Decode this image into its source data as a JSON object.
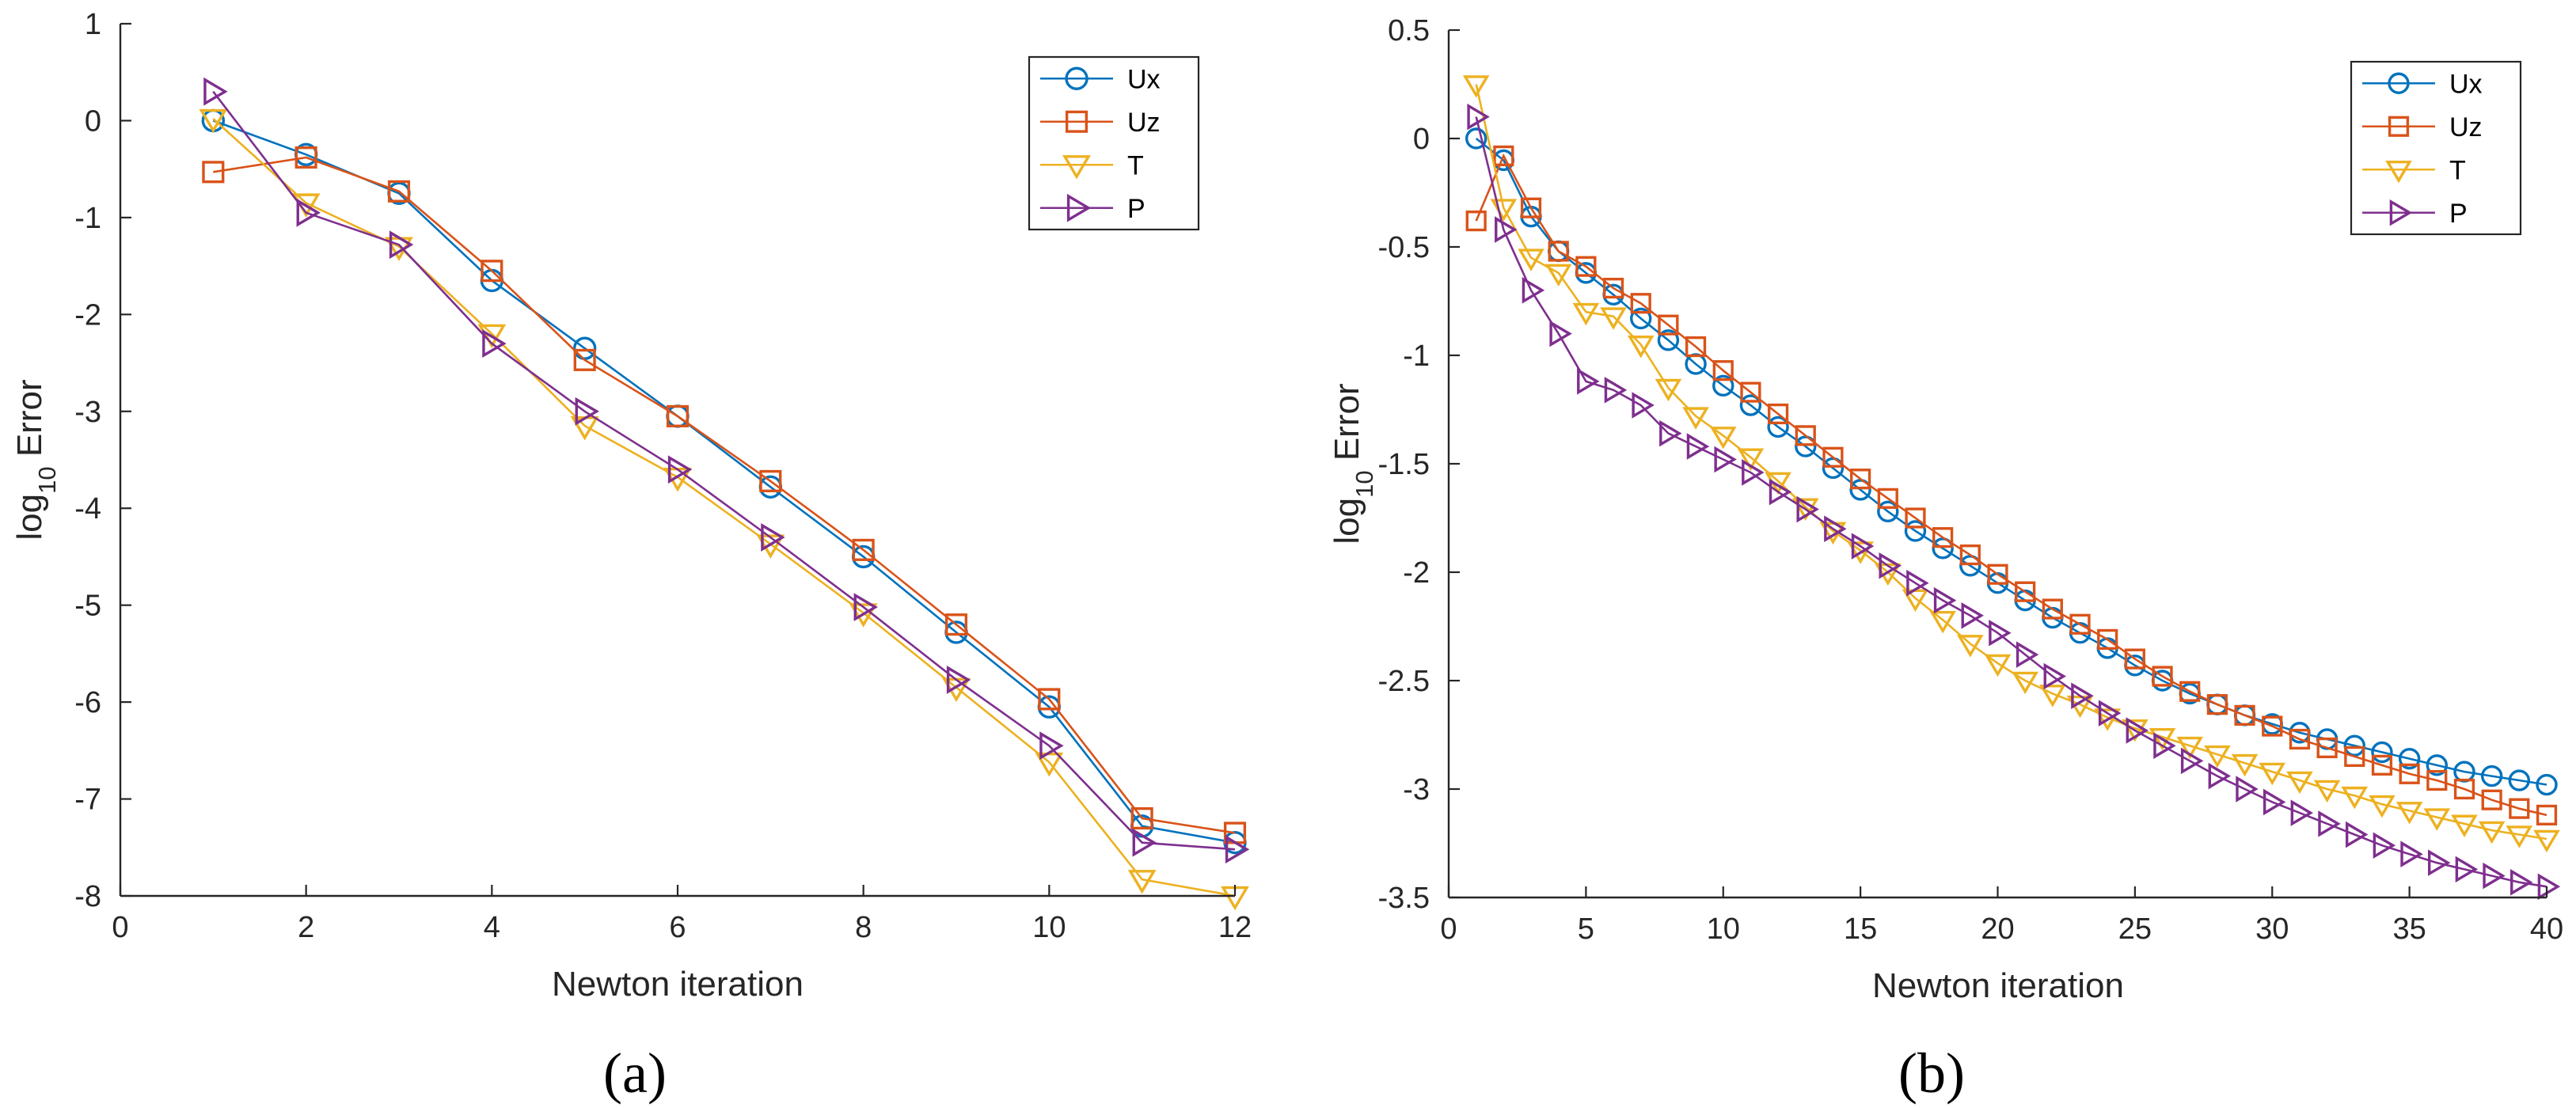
{
  "chart_data": [
    {
      "type": "line",
      "panel_label": "(a)",
      "xlabel": "Newton iteration",
      "ylabel": "log10 Error",
      "xlim": [
        0,
        12
      ],
      "ylim": [
        -8,
        1
      ],
      "xticks": [
        0,
        2,
        4,
        6,
        8,
        10,
        12
      ],
      "yticks": [
        1,
        0,
        -1,
        -2,
        -3,
        -4,
        -5,
        -6,
        -7,
        -8
      ],
      "grid": false,
      "legend_position": "top-right",
      "x": [
        1,
        2,
        3,
        4,
        5,
        6,
        7,
        8,
        9,
        10,
        11,
        12
      ],
      "series": [
        {
          "name": "Ux",
          "color": "#0072BD",
          "marker": "circle",
          "values": [
            0.0,
            -0.35,
            -0.75,
            -1.65,
            -2.35,
            -3.05,
            -3.78,
            -4.5,
            -5.28,
            -6.05,
            -7.28,
            -7.45
          ]
        },
        {
          "name": "Uz",
          "color": "#D95319",
          "marker": "square",
          "values": [
            -0.53,
            -0.38,
            -0.73,
            -1.55,
            -2.47,
            -3.05,
            -3.72,
            -4.43,
            -5.2,
            -5.97,
            -7.2,
            -7.35
          ]
        },
        {
          "name": "T",
          "color": "#EDB120",
          "marker": "triangle-down",
          "values": [
            0.02,
            -0.85,
            -1.3,
            -2.2,
            -3.15,
            -3.68,
            -4.37,
            -5.08,
            -5.85,
            -6.62,
            -7.83,
            -8.0
          ]
        },
        {
          "name": "P",
          "color": "#7E2F8E",
          "marker": "triangle-right",
          "values": [
            0.3,
            -0.95,
            -1.28,
            -2.3,
            -3.0,
            -3.6,
            -4.3,
            -5.02,
            -5.77,
            -6.45,
            -7.45,
            -7.52
          ]
        }
      ]
    },
    {
      "type": "line",
      "panel_label": "(b)",
      "xlabel": "Newton iteration",
      "ylabel": "log10 Error",
      "xlim": [
        0,
        40
      ],
      "ylim": [
        -3.5,
        0.5
      ],
      "xticks": [
        0,
        5,
        10,
        15,
        20,
        25,
        30,
        35,
        40
      ],
      "yticks": [
        0.5,
        0,
        -0.5,
        -1,
        -1.5,
        -2,
        -2.5,
        -3,
        -3.5
      ],
      "grid": false,
      "legend_position": "top-right",
      "x": [
        1,
        2,
        3,
        4,
        5,
        6,
        7,
        8,
        9,
        10,
        11,
        12,
        13,
        14,
        15,
        16,
        17,
        18,
        19,
        20,
        21,
        22,
        23,
        24,
        25,
        26,
        27,
        28,
        29,
        30,
        31,
        32,
        33,
        34,
        35,
        36,
        37,
        38,
        39,
        40
      ],
      "series": [
        {
          "name": "Ux",
          "color": "#0072BD",
          "marker": "circle",
          "values": [
            0.0,
            -0.1,
            -0.36,
            -0.52,
            -0.62,
            -0.72,
            -0.83,
            -0.93,
            -1.04,
            -1.14,
            -1.23,
            -1.33,
            -1.42,
            -1.52,
            -1.62,
            -1.72,
            -1.81,
            -1.89,
            -1.97,
            -2.05,
            -2.13,
            -2.21,
            -2.28,
            -2.35,
            -2.43,
            -2.5,
            -2.56,
            -2.61,
            -2.66,
            -2.7,
            -2.74,
            -2.77,
            -2.8,
            -2.83,
            -2.86,
            -2.89,
            -2.92,
            -2.94,
            -2.96,
            -2.98
          ]
        },
        {
          "name": "Uz",
          "color": "#D95319",
          "marker": "square",
          "values": [
            -0.38,
            -0.08,
            -0.32,
            -0.52,
            -0.59,
            -0.69,
            -0.76,
            -0.86,
            -0.96,
            -1.07,
            -1.17,
            -1.27,
            -1.37,
            -1.47,
            -1.57,
            -1.66,
            -1.75,
            -1.84,
            -1.92,
            -2.01,
            -2.09,
            -2.17,
            -2.24,
            -2.31,
            -2.4,
            -2.48,
            -2.55,
            -2.61,
            -2.66,
            -2.71,
            -2.77,
            -2.81,
            -2.85,
            -2.89,
            -2.93,
            -2.96,
            -3.0,
            -3.05,
            -3.09,
            -3.12
          ]
        },
        {
          "name": "T",
          "color": "#EDB120",
          "marker": "triangle-down",
          "values": [
            0.25,
            -0.32,
            -0.55,
            -0.62,
            -0.8,
            -0.82,
            -0.95,
            -1.15,
            -1.28,
            -1.37,
            -1.47,
            -1.58,
            -1.7,
            -1.81,
            -1.9,
            -2.0,
            -2.12,
            -2.22,
            -2.33,
            -2.42,
            -2.5,
            -2.56,
            -2.61,
            -2.67,
            -2.72,
            -2.76,
            -2.8,
            -2.84,
            -2.88,
            -2.92,
            -2.96,
            -3.0,
            -3.03,
            -3.07,
            -3.1,
            -3.13,
            -3.16,
            -3.19,
            -3.21,
            -3.23
          ]
        },
        {
          "name": "P",
          "color": "#7E2F8E",
          "marker": "triangle-right",
          "values": [
            0.1,
            -0.42,
            -0.7,
            -0.9,
            -1.12,
            -1.16,
            -1.23,
            -1.36,
            -1.42,
            -1.48,
            -1.54,
            -1.63,
            -1.71,
            -1.8,
            -1.88,
            -1.97,
            -2.05,
            -2.13,
            -2.2,
            -2.28,
            -2.38,
            -2.48,
            -2.57,
            -2.65,
            -2.73,
            -2.8,
            -2.87,
            -2.94,
            -3.0,
            -3.06,
            -3.11,
            -3.16,
            -3.21,
            -3.26,
            -3.3,
            -3.34,
            -3.37,
            -3.4,
            -3.43,
            -3.45
          ]
        }
      ]
    }
  ]
}
